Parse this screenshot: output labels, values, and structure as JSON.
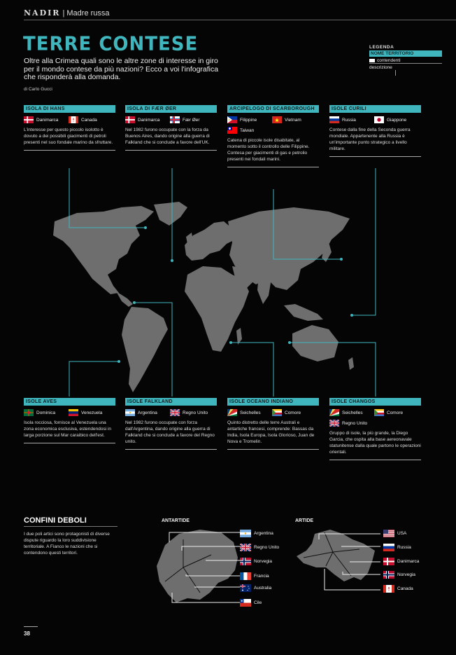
{
  "masthead": {
    "brand": "NADIR",
    "section": "| Madre russa"
  },
  "title": "TERRE CONTESE",
  "intro": "Oltre alla Crimea quali sono le altre zone di interesse in giro per il mondo contese da più nazioni? Ecco a voi l'infografica che risponderà alla domanda.",
  "byline": "di Carlo Gucci",
  "legend": {
    "title": "LEGENDA",
    "name": "NOME TERRITORIO",
    "claimants": "contendenti",
    "description": "descrizione"
  },
  "accent_color": "#3fb5bd",
  "top_boxes": [
    {
      "title": "ISOLA DI HANS",
      "claims": [
        {
          "flag": "denmark",
          "label": "Danimarca"
        },
        {
          "flag": "canada",
          "label": "Canada"
        }
      ],
      "desc": "L'interesse per questo piccolo isolotto è dovuto a dei possibili giacimenti di petroli presenti nel suo fondale marino da sfruttare."
    },
    {
      "title": "ISOLA DI FÆR ØER",
      "claims": [
        {
          "flag": "denmark",
          "label": "Danimarca"
        },
        {
          "flag": "faroe",
          "label": "Fær Øer"
        }
      ],
      "desc": "Nel 1982 furono occupate con la forza da Buenos Aires, dando origine alla guerra di Falkland che si conclude a favore dell'UK."
    },
    {
      "title": "ARCIPELOGO DI SCARBOROUGH",
      "claims": [
        {
          "flag": "philippines",
          "label": "Filippine"
        },
        {
          "flag": "vietnam",
          "label": "Vietnam"
        },
        {
          "flag": "taiwan",
          "label": "Taiwan"
        }
      ],
      "desc": "Catena di piccole isole disabitate, al momento sotto il controllo delle Filippine. Contesa per giacimenti di gas e petrolio presenti nei fondali marini."
    },
    {
      "title": "ISOLE CURILI",
      "claims": [
        {
          "flag": "russia",
          "label": "Russia"
        },
        {
          "flag": "japan",
          "label": "Giappone"
        }
      ],
      "desc": "Contese dalla fine della Seconda guerra mondiale. Appartenente alla Russia è un'importante punto strategico a livello militare."
    }
  ],
  "bottom_boxes": [
    {
      "title": "ISOLE AVES",
      "claims": [
        {
          "flag": "dominica",
          "label": "Dominica"
        },
        {
          "flag": "venezuela",
          "label": "Venezuela"
        }
      ],
      "desc": "Isola rocciosa, fornisce al Venezuela una zona economica esclusiva, estendendosi in larga porzione sul Mar caraibico dell'est."
    },
    {
      "title": "ISOLE FALKLAND",
      "claims": [
        {
          "flag": "argentina",
          "label": "Argentina"
        },
        {
          "flag": "uk",
          "label": "Regno Unito"
        }
      ],
      "desc": "Nel 1982 furono occupate con forza dall'Argentina, dando origine alla guerra di Falkland che si conclude a favore del Regno unito."
    },
    {
      "title": "ISOLE OCEANO INDIANO",
      "claims": [
        {
          "flag": "seychelles",
          "label": "Seichelles"
        },
        {
          "flag": "comoros",
          "label": "Comore"
        }
      ],
      "desc": "Quinto distretto delle terre Australi e antartiche francesi, comprende: Bassas da India, Isola Europa, Isola Glorioso, Juan de Nova e Tromelin."
    },
    {
      "title": "ISOLE CHANGOS",
      "claims": [
        {
          "flag": "seychelles",
          "label": "Seichelles"
        },
        {
          "flag": "comoros",
          "label": "Comore"
        },
        {
          "flag": "uk",
          "label": "Regno Unito"
        }
      ],
      "desc": "Gruppo di isole, la più grande, la Diego Garcia, che ospita alla base aereonavale statunitense dalla quale partono le operazioni orientali."
    }
  ],
  "weak_borders": {
    "title": "CONFINI DEBOLI",
    "text": "I due poli artici sono protagonisti di diverse dispute riguardo la loro suddivisione territoriale. A Fianco le nazioni che si contendono questi territori.",
    "antarctica": {
      "title": "ANTARTIDE",
      "claims": [
        {
          "flag": "argentina",
          "label": "Argentina"
        },
        {
          "flag": "uk",
          "label": "Regno Unito"
        },
        {
          "flag": "norway",
          "label": "Norvegia"
        },
        {
          "flag": "france",
          "label": "Francia"
        },
        {
          "flag": "australia",
          "label": "Australia"
        },
        {
          "flag": "chile",
          "label": "Cile"
        }
      ]
    },
    "arctic": {
      "title": "ARTIDE",
      "claims": [
        {
          "flag": "usa",
          "label": "USA"
        },
        {
          "flag": "russia",
          "label": "Russia"
        },
        {
          "flag": "denmark",
          "label": "Danimarca"
        },
        {
          "flag": "norway",
          "label": "Norvegia"
        },
        {
          "flag": "canada",
          "label": "Canada"
        }
      ]
    }
  },
  "page_number": "38"
}
